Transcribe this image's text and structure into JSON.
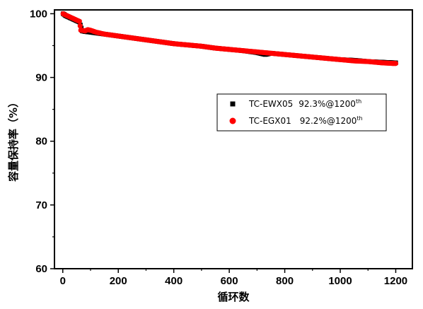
{
  "chart_data": {
    "type": "scatter",
    "title": "",
    "xlabel": "循环数",
    "ylabel": "容量保持率（%）",
    "xlim": [
      -30,
      1260
    ],
    "ylim": [
      60,
      100.6
    ],
    "xticks": [
      0,
      200,
      400,
      600,
      800,
      1000,
      1200
    ],
    "yticks": [
      60,
      70,
      80,
      90,
      100
    ],
    "grid": false,
    "legend_position": "center-right",
    "series": [
      {
        "name": "TC-EWX05",
        "legend_label": "TC-EWX05",
        "annotation": "92.3%@1200",
        "annotation_sup": "th",
        "marker": "square",
        "color": "#000000",
        "points": [
          [
            1,
            100.0
          ],
          [
            5,
            99.9
          ],
          [
            10,
            99.7
          ],
          [
            20,
            99.5
          ],
          [
            30,
            99.3
          ],
          [
            40,
            99.1
          ],
          [
            50,
            98.9
          ],
          [
            60,
            98.7
          ],
          [
            70,
            97.3
          ],
          [
            80,
            97.2
          ],
          [
            100,
            97.1
          ],
          [
            150,
            96.8
          ],
          [
            200,
            96.5
          ],
          [
            250,
            96.2
          ],
          [
            300,
            95.9
          ],
          [
            350,
            95.6
          ],
          [
            400,
            95.3
          ],
          [
            450,
            95.1
          ],
          [
            500,
            94.9
          ],
          [
            550,
            94.6
          ],
          [
            600,
            94.4
          ],
          [
            650,
            94.2
          ],
          [
            700,
            93.9
          ],
          [
            730,
            93.6
          ],
          [
            750,
            93.8
          ],
          [
            800,
            93.6
          ],
          [
            850,
            93.4
          ],
          [
            900,
            93.2
          ],
          [
            950,
            93.0
          ],
          [
            1000,
            92.8
          ],
          [
            1050,
            92.7
          ],
          [
            1100,
            92.5
          ],
          [
            1150,
            92.4
          ],
          [
            1200,
            92.3
          ]
        ]
      },
      {
        "name": "TC-EGX01",
        "legend_label": "TC-EGX01",
        "annotation": "92.2%@1200",
        "annotation_sup": "th",
        "marker": "circle",
        "color": "#ff0000",
        "points": [
          [
            1,
            100.0
          ],
          [
            5,
            99.9
          ],
          [
            10,
            99.8
          ],
          [
            15,
            99.7
          ],
          [
            20,
            99.6
          ],
          [
            30,
            99.4
          ],
          [
            40,
            99.2
          ],
          [
            50,
            99.0
          ],
          [
            60,
            98.8
          ],
          [
            65,
            97.4
          ],
          [
            70,
            97.4
          ],
          [
            80,
            97.3
          ],
          [
            90,
            97.5
          ],
          [
            100,
            97.4
          ],
          [
            120,
            97.1
          ],
          [
            150,
            96.8
          ],
          [
            200,
            96.5
          ],
          [
            250,
            96.2
          ],
          [
            300,
            95.9
          ],
          [
            350,
            95.6
          ],
          [
            400,
            95.3
          ],
          [
            450,
            95.1
          ],
          [
            500,
            94.9
          ],
          [
            550,
            94.6
          ],
          [
            600,
            94.4
          ],
          [
            650,
            94.2
          ],
          [
            700,
            94.0
          ],
          [
            750,
            93.8
          ],
          [
            800,
            93.6
          ],
          [
            850,
            93.4
          ],
          [
            900,
            93.2
          ],
          [
            950,
            93.0
          ],
          [
            1000,
            92.8
          ],
          [
            1050,
            92.6
          ],
          [
            1100,
            92.5
          ],
          [
            1150,
            92.3
          ],
          [
            1190,
            92.2
          ],
          [
            1200,
            92.2
          ]
        ]
      }
    ]
  }
}
